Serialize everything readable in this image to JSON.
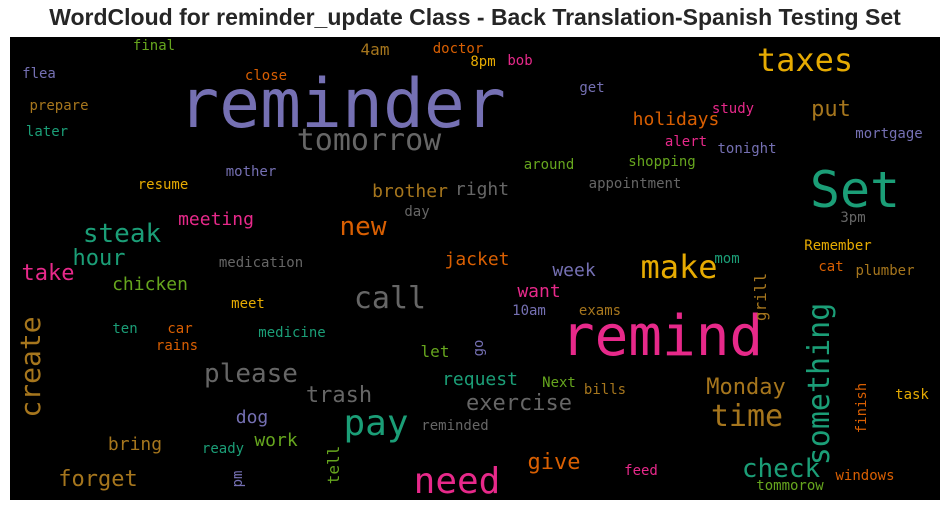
{
  "title": "WordCloud for reminder_update Class - Back Translation-Spanish Testing Set",
  "words": [
    {
      "text": "reminder",
      "color": "#7570b3"
    },
    {
      "text": "remind",
      "color": "#e7298a"
    },
    {
      "text": "Set",
      "color": "#1b9e77"
    },
    {
      "text": "tomorrow",
      "color": "#666666"
    },
    {
      "text": "taxes",
      "color": "#e6ab02"
    },
    {
      "text": "need",
      "color": "#e7298a"
    },
    {
      "text": "pay",
      "color": "#1b9e77"
    },
    {
      "text": "make",
      "color": "#e6ab02"
    },
    {
      "text": "call",
      "color": "#666666"
    },
    {
      "text": "time",
      "color": "#a6761d"
    },
    {
      "text": "something",
      "color": "#1b9e77"
    },
    {
      "text": "create",
      "color": "#a6761d"
    },
    {
      "text": "please",
      "color": "#666666"
    },
    {
      "text": "steak",
      "color": "#1b9e77"
    },
    {
      "text": "check",
      "color": "#1b9e77"
    },
    {
      "text": "new",
      "color": "#d95f02"
    },
    {
      "text": "put",
      "color": "#a6761d"
    },
    {
      "text": "exercise",
      "color": "#666666"
    },
    {
      "text": "trash",
      "color": "#666666"
    },
    {
      "text": "Monday",
      "color": "#a6761d"
    },
    {
      "text": "forget",
      "color": "#a6761d"
    },
    {
      "text": "give",
      "color": "#d95f02"
    },
    {
      "text": "hour",
      "color": "#1b9e77"
    },
    {
      "text": "take",
      "color": "#e7298a"
    },
    {
      "text": "holidays",
      "color": "#d95f02"
    },
    {
      "text": "brother",
      "color": "#a6761d"
    },
    {
      "text": "right",
      "color": "#666666"
    },
    {
      "text": "meeting",
      "color": "#e7298a"
    },
    {
      "text": "jacket",
      "color": "#d95f02"
    },
    {
      "text": "chicken",
      "color": "#66a61e"
    },
    {
      "text": "want",
      "color": "#e7298a"
    },
    {
      "text": "week",
      "color": "#7570b3"
    },
    {
      "text": "request",
      "color": "#1b9e77"
    },
    {
      "text": "dog",
      "color": "#7570b3"
    },
    {
      "text": "bring",
      "color": "#a6761d"
    },
    {
      "text": "work",
      "color": "#66a61e"
    },
    {
      "text": "4am",
      "color": "#a6761d"
    },
    {
      "text": "let",
      "color": "#66a61e"
    },
    {
      "text": "grill",
      "color": "#a6761d"
    },
    {
      "text": "tell",
      "color": "#66a61e"
    },
    {
      "text": "doctor",
      "color": "#d95f02"
    },
    {
      "text": "bob",
      "color": "#e7298a"
    },
    {
      "text": "8pm",
      "color": "#e6ab02"
    },
    {
      "text": "final",
      "color": "#66a61e"
    },
    {
      "text": "flea",
      "color": "#7570b3"
    },
    {
      "text": "close",
      "color": "#d95f02"
    },
    {
      "text": "prepare",
      "color": "#a6761d"
    },
    {
      "text": "later",
      "color": "#1b9e77"
    },
    {
      "text": "get",
      "color": "#7570b3"
    },
    {
      "text": "study",
      "color": "#e7298a"
    },
    {
      "text": "alert",
      "color": "#e7298a"
    },
    {
      "text": "mortgage",
      "color": "#7570b3"
    },
    {
      "text": "tonight",
      "color": "#7570b3"
    },
    {
      "text": "around",
      "color": "#66a61e"
    },
    {
      "text": "shopping",
      "color": "#66a61e"
    },
    {
      "text": "mother",
      "color": "#7570b3"
    },
    {
      "text": "resume",
      "color": "#e6ab02"
    },
    {
      "text": "appointment",
      "color": "#666666"
    },
    {
      "text": "day",
      "color": "#666666"
    },
    {
      "text": "3pm",
      "color": "#666666"
    },
    {
      "text": "Remember",
      "color": "#e6ab02"
    },
    {
      "text": "medication",
      "color": "#666666"
    },
    {
      "text": "mom",
      "color": "#1b9e77"
    },
    {
      "text": "cat",
      "color": "#d95f02"
    },
    {
      "text": "plumber",
      "color": "#a6761d"
    },
    {
      "text": "meet",
      "color": "#e6ab02"
    },
    {
      "text": "exams",
      "color": "#a6761d"
    },
    {
      "text": "10am",
      "color": "#7570b3"
    },
    {
      "text": "ten",
      "color": "#1b9e77"
    },
    {
      "text": "car",
      "color": "#d95f02"
    },
    {
      "text": "medicine",
      "color": "#1b9e77"
    },
    {
      "text": "rains",
      "color": "#d95f02"
    },
    {
      "text": "go",
      "color": "#7570b3"
    },
    {
      "text": "Next",
      "color": "#66a61e"
    },
    {
      "text": "bills",
      "color": "#a6761d"
    },
    {
      "text": "task",
      "color": "#e6ab02"
    },
    {
      "text": "finish",
      "color": "#d95f02"
    },
    {
      "text": "reminded",
      "color": "#666666"
    },
    {
      "text": "ready",
      "color": "#1b9e77"
    },
    {
      "text": "feed",
      "color": "#e7298a"
    },
    {
      "text": "pm",
      "color": "#7570b3"
    },
    {
      "text": "tommorow",
      "color": "#66a61e"
    },
    {
      "text": "windows",
      "color": "#d95f02"
    }
  ]
}
